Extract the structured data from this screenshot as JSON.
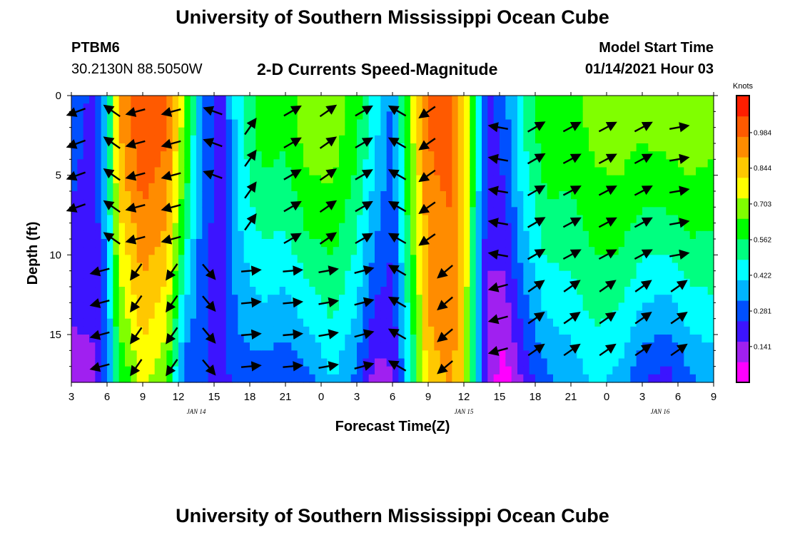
{
  "header": {
    "title": "University of Southern Mississippi Ocean Cube",
    "station_id": "PTBM6",
    "coordinates": "30.2130N 88.5050W",
    "subtitle": "2-D Currents Speed-Magnitude",
    "model_start_label": "Model Start Time",
    "model_start_value": "01/14/2021 Hour 03"
  },
  "footer": {
    "title": "University of Southern Mississippi Ocean Cube"
  },
  "chart_data": {
    "type": "heatmap",
    "title": "2-D Currents Speed-Magnitude",
    "xlabel": "Forecast Time(Z)",
    "ylabel": "Depth (ft)",
    "x_range_hours": [
      0,
      54
    ],
    "x_ticks": [
      {
        "hour": 0,
        "label": "3"
      },
      {
        "hour": 3,
        "label": "6"
      },
      {
        "hour": 6,
        "label": "9"
      },
      {
        "hour": 9,
        "label": "12"
      },
      {
        "hour": 12,
        "label": "15"
      },
      {
        "hour": 15,
        "label": "18"
      },
      {
        "hour": 18,
        "label": "21"
      },
      {
        "hour": 21,
        "label": "0"
      },
      {
        "hour": 24,
        "label": "3"
      },
      {
        "hour": 27,
        "label": "6"
      },
      {
        "hour": 30,
        "label": "9"
      },
      {
        "hour": 33,
        "label": "12"
      },
      {
        "hour": 36,
        "label": "15"
      },
      {
        "hour": 39,
        "label": "18"
      },
      {
        "hour": 42,
        "label": "21"
      },
      {
        "hour": 45,
        "label": "0"
      },
      {
        "hour": 48,
        "label": "3"
      },
      {
        "hour": 51,
        "label": "6"
      },
      {
        "hour": 54,
        "label": "9"
      }
    ],
    "date_labels": [
      {
        "hour": 10.5,
        "label": "JAN 14"
      },
      {
        "hour": 33,
        "label": "JAN 15"
      },
      {
        "hour": 49.5,
        "label": "JAN 16"
      }
    ],
    "y_range_ft": [
      0,
      18
    ],
    "y_ticks": [
      0,
      5,
      10,
      15
    ],
    "colorbar": {
      "title": "Knots",
      "min": 0,
      "max": 1.13,
      "labels": [
        "0.984",
        "0.844",
        "0.703",
        "0.562",
        "0.422",
        "0.281",
        "0.141"
      ],
      "colors": [
        "#ff00ff",
        "#a020f0",
        "#3c14ff",
        "#0050ff",
        "#00b4ff",
        "#00ffff",
        "#00ff80",
        "#00ff00",
        "#80ff00",
        "#ffff00",
        "#ffc800",
        "#ff8c00",
        "#ff5a00",
        "#ff1e00"
      ]
    },
    "speed_profile_by_hour": [
      {
        "hour": 0,
        "surface": 0.28,
        "bottom": 0.12
      },
      {
        "hour": 2,
        "surface": 0.22,
        "bottom": 0.15
      },
      {
        "hour": 3,
        "surface": 0.42,
        "bottom": 0.28
      },
      {
        "hour": 4,
        "surface": 0.9,
        "bottom": 0.55
      },
      {
        "hour": 6,
        "surface": 1.05,
        "bottom": 0.75
      },
      {
        "hour": 8,
        "surface": 1.0,
        "bottom": 0.65
      },
      {
        "hour": 9.5,
        "surface": 0.7,
        "bottom": 0.25
      },
      {
        "hour": 11,
        "surface": 0.3,
        "bottom": 0.25
      },
      {
        "hour": 12.5,
        "surface": 0.2,
        "bottom": 0.2
      },
      {
        "hour": 14,
        "surface": 0.45,
        "bottom": 0.28
      },
      {
        "hour": 16,
        "surface": 0.62,
        "bottom": 0.28
      },
      {
        "hour": 18,
        "surface": 0.6,
        "bottom": 0.25
      },
      {
        "hour": 20,
        "surface": 0.72,
        "bottom": 0.3
      },
      {
        "hour": 22,
        "surface": 0.7,
        "bottom": 0.4
      },
      {
        "hour": 24,
        "surface": 0.6,
        "bottom": 0.3
      },
      {
        "hour": 25.5,
        "surface": 0.45,
        "bottom": 0.12
      },
      {
        "hour": 27,
        "surface": 0.3,
        "bottom": 0.15
      },
      {
        "hour": 28.5,
        "surface": 0.7,
        "bottom": 0.45
      },
      {
        "hour": 30,
        "surface": 0.98,
        "bottom": 0.85
      },
      {
        "hour": 32,
        "surface": 1.0,
        "bottom": 0.9
      },
      {
        "hour": 33,
        "surface": 0.85,
        "bottom": 0.8
      },
      {
        "hour": 34,
        "surface": 0.5,
        "bottom": 0.4
      },
      {
        "hour": 35,
        "surface": 0.2,
        "bottom": 0.12
      },
      {
        "hour": 36.5,
        "surface": 0.3,
        "bottom": 0.03
      },
      {
        "hour": 38,
        "surface": 0.5,
        "bottom": 0.18
      },
      {
        "hour": 40,
        "surface": 0.65,
        "bottom": 0.3
      },
      {
        "hour": 42,
        "surface": 0.62,
        "bottom": 0.35
      },
      {
        "hour": 44,
        "surface": 0.68,
        "bottom": 0.42
      },
      {
        "hour": 46,
        "surface": 0.7,
        "bottom": 0.38
      },
      {
        "hour": 48,
        "surface": 0.68,
        "bottom": 0.25
      },
      {
        "hour": 50,
        "surface": 0.7,
        "bottom": 0.2
      },
      {
        "hour": 52,
        "surface": 0.72,
        "bottom": 0.3
      },
      {
        "hour": 54,
        "surface": 0.68,
        "bottom": 0.35
      }
    ],
    "vector_columns": [
      {
        "hour": 0.5,
        "angle_deg": 250,
        "rows_ft": [
          1,
          3,
          5,
          7
        ]
      },
      {
        "hour": 2.5,
        "angle_deg": 255,
        "rows_ft": [
          11,
          13,
          15,
          17
        ]
      },
      {
        "hour": 3.5,
        "angle_deg": 305,
        "rows_ft": [
          1,
          3,
          5,
          7,
          9
        ]
      },
      {
        "hour": 5.5,
        "angle_deg": 255,
        "rows_ft": [
          1,
          3,
          5,
          7,
          9
        ]
      },
      {
        "hour": 5.5,
        "angle_deg": 215,
        "rows_ft": [
          11,
          13,
          15,
          17
        ]
      },
      {
        "hour": 8.5,
        "angle_deg": 255,
        "rows_ft": [
          1,
          3,
          5,
          7,
          9
        ]
      },
      {
        "hour": 8.5,
        "angle_deg": 215,
        "rows_ft": [
          11,
          13,
          15,
          17
        ]
      },
      {
        "hour": 12.0,
        "angle_deg": 290,
        "rows_ft": [
          1,
          3,
          5
        ]
      },
      {
        "hour": 11.5,
        "angle_deg": 140,
        "rows_ft": [
          11,
          13,
          15,
          17
        ]
      },
      {
        "hour": 15.0,
        "angle_deg": 35,
        "rows_ft": [
          2,
          4,
          6,
          8
        ]
      },
      {
        "hour": 15.0,
        "angle_deg": 85,
        "rows_ft": [
          11,
          13,
          15,
          17
        ]
      },
      {
        "hour": 18.5,
        "angle_deg": 60,
        "rows_ft": [
          1,
          3,
          5,
          7,
          9
        ]
      },
      {
        "hour": 18.5,
        "angle_deg": 85,
        "rows_ft": [
          11,
          13,
          15,
          17
        ]
      },
      {
        "hour": 21.5,
        "angle_deg": 55,
        "rows_ft": [
          1,
          3,
          5,
          7,
          9
        ]
      },
      {
        "hour": 21.5,
        "angle_deg": 80,
        "rows_ft": [
          11,
          13,
          15,
          17
        ]
      },
      {
        "hour": 24.5,
        "angle_deg": 60,
        "rows_ft": [
          1,
          3,
          5,
          7,
          9
        ]
      },
      {
        "hour": 24.5,
        "angle_deg": 75,
        "rows_ft": [
          11,
          13,
          15,
          17
        ]
      },
      {
        "hour": 27.5,
        "angle_deg": 300,
        "rows_ft": [
          1,
          3,
          5,
          7,
          9
        ]
      },
      {
        "hour": 27.5,
        "angle_deg": 300,
        "rows_ft": [
          11,
          13,
          15,
          17
        ]
      },
      {
        "hour": 30.0,
        "angle_deg": 235,
        "rows_ft": [
          1,
          3,
          5,
          7,
          9
        ]
      },
      {
        "hour": 31.5,
        "angle_deg": 230,
        "rows_ft": [
          11,
          13,
          15,
          17
        ]
      },
      {
        "hour": 36.0,
        "angle_deg": 280,
        "rows_ft": [
          2,
          4,
          6,
          8,
          10
        ]
      },
      {
        "hour": 36.0,
        "angle_deg": 255,
        "rows_ft": [
          12,
          14,
          16
        ]
      },
      {
        "hour": 39.0,
        "angle_deg": 60,
        "rows_ft": [
          2,
          4,
          6,
          8,
          10
        ]
      },
      {
        "hour": 39.0,
        "angle_deg": 55,
        "rows_ft": [
          12,
          14,
          16
        ]
      },
      {
        "hour": 42.0,
        "angle_deg": 62,
        "rows_ft": [
          2,
          4,
          6,
          8,
          10
        ]
      },
      {
        "hour": 42.0,
        "angle_deg": 55,
        "rows_ft": [
          12,
          14,
          16
        ]
      },
      {
        "hour": 45.0,
        "angle_deg": 62,
        "rows_ft": [
          2,
          4,
          6,
          8,
          10
        ]
      },
      {
        "hour": 45.0,
        "angle_deg": 55,
        "rows_ft": [
          12,
          14,
          16
        ]
      },
      {
        "hour": 48.0,
        "angle_deg": 62,
        "rows_ft": [
          2,
          4,
          6,
          8,
          10
        ]
      },
      {
        "hour": 48.0,
        "angle_deg": 55,
        "rows_ft": [
          12,
          14,
          16
        ]
      },
      {
        "hour": 51.0,
        "angle_deg": 80,
        "rows_ft": [
          2,
          4,
          6,
          8,
          10
        ]
      },
      {
        "hour": 51.0,
        "angle_deg": 55,
        "rows_ft": [
          12,
          14,
          16
        ]
      }
    ]
  }
}
